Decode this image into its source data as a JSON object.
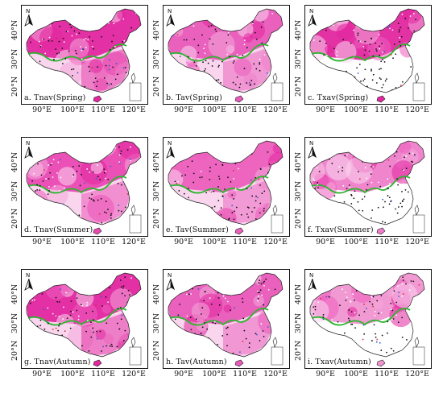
{
  "axes": {
    "y_ticks": [
      "40°N",
      "30°N",
      "20°N"
    ],
    "x_ticks": [
      "90°E",
      "100°E",
      "110°E",
      "120°E"
    ]
  },
  "north_arrow_letter": "N",
  "colors": {
    "magenta_high": "#e2279f",
    "magenta_mid": "#ee5cbd",
    "pink_low": "#f4a8da",
    "pink_pale": "#f9d5ee",
    "boundary_line": "#2fb52f",
    "station_dot": "#111111",
    "outline": "#222222"
  },
  "panels": [
    {
      "label": "a. Tnav(Spring)",
      "extent": "full",
      "tint": "#e2279f"
    },
    {
      "label": "b. Tav(Spring)",
      "extent": "full",
      "tint": "#e85ab9"
    },
    {
      "label": "c. Txav(Spring)",
      "extent": "north",
      "tint": "#e2279f"
    },
    {
      "label": "d. Tnav(Summer)",
      "extent": "full",
      "tint": "#ea49b3"
    },
    {
      "label": "e. Tav(Summer)",
      "extent": "full",
      "tint": "#ec5fbc"
    },
    {
      "label": "f. Txav(Summer)",
      "extent": "north",
      "tint": "#ee7ec9"
    },
    {
      "label": "g. Tnav(Autumn)",
      "extent": "full",
      "tint": "#e2279f"
    },
    {
      "label": "h. Tav(Autumn)",
      "extent": "full",
      "tint": "#e85ab9"
    },
    {
      "label": "i. Txav(Autumn)",
      "extent": "north",
      "tint": "#f093d0"
    }
  ]
}
